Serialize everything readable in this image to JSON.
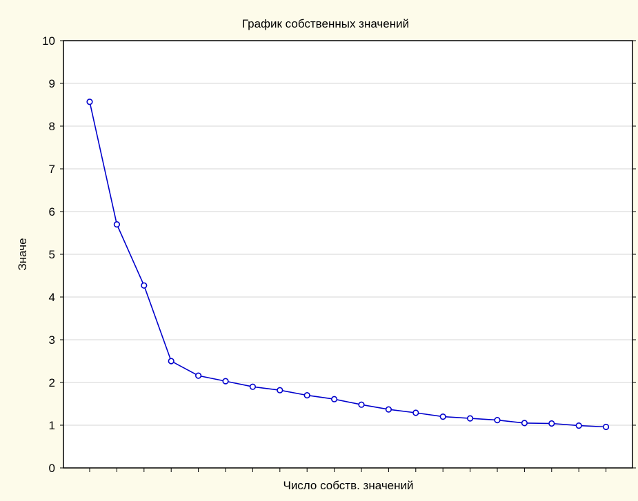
{
  "chart_data": {
    "type": "line",
    "title": "График собственных значений",
    "xlabel": "Число собств. значений",
    "ylabel": "Значе",
    "ylim": [
      0,
      10
    ],
    "yticks": [
      0,
      1,
      2,
      3,
      4,
      5,
      6,
      7,
      8,
      9,
      10
    ],
    "grid": "horizontal",
    "series": [
      {
        "color": "#0000cc",
        "marker": "circle",
        "x": [
          1,
          2,
          3,
          4,
          5,
          6,
          7,
          8,
          9,
          10,
          11,
          12,
          13,
          14,
          15,
          16,
          17,
          18,
          19,
          20
        ],
        "values": [
          8.57,
          5.7,
          4.27,
          2.5,
          2.16,
          2.03,
          1.9,
          1.82,
          1.7,
          1.61,
          1.48,
          1.37,
          1.29,
          1.2,
          1.16,
          1.12,
          1.05,
          1.04,
          0.99,
          0.96
        ]
      }
    ]
  }
}
